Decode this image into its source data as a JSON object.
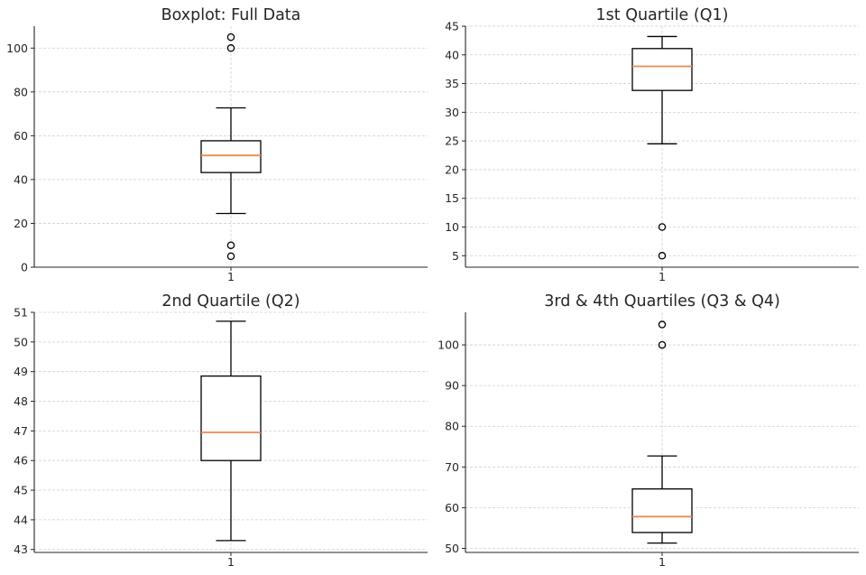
{
  "chart_data": [
    {
      "type": "box",
      "title": "Boxplot: Full Data",
      "categories": [
        "1"
      ],
      "ylim": [
        0,
        110
      ],
      "yticks": [
        0,
        20,
        40,
        60,
        80,
        100
      ],
      "grid": true,
      "box": {
        "whislo": 24.5,
        "q1": 43.2,
        "median": 51,
        "q3": 57.7,
        "whishi": 72.7,
        "fliers": [
          5,
          10,
          100,
          105
        ]
      }
    },
    {
      "type": "box",
      "title": "1st Quartile (Q1)",
      "categories": [
        "1"
      ],
      "ylim": [
        3,
        45
      ],
      "yticks": [
        5,
        10,
        15,
        20,
        25,
        30,
        35,
        40,
        45
      ],
      "grid": true,
      "box": {
        "whislo": 24.5,
        "q1": 33.8,
        "median": 38,
        "q3": 41.1,
        "whishi": 43.2,
        "fliers": [
          5,
          10
        ]
      }
    },
    {
      "type": "box",
      "title": "2nd Quartile (Q2)",
      "categories": [
        "1"
      ],
      "ylim": [
        42.9,
        51
      ],
      "yticks": [
        43,
        44,
        45,
        46,
        47,
        48,
        49,
        50,
        51
      ],
      "grid": true,
      "box": {
        "whislo": 43.3,
        "q1": 46,
        "median": 46.95,
        "q3": 48.85,
        "whishi": 50.7,
        "fliers": []
      }
    },
    {
      "type": "box",
      "title": "3rd & 4th Quartiles (Q3 & Q4)",
      "categories": [
        "1"
      ],
      "ylim": [
        49,
        108
      ],
      "yticks": [
        50,
        60,
        70,
        80,
        90,
        100
      ],
      "grid": true,
      "box": {
        "whislo": 51.3,
        "q1": 53.9,
        "median": 57.8,
        "q3": 64.6,
        "whishi": 72.7,
        "fliers": [
          100,
          105
        ]
      }
    }
  ]
}
